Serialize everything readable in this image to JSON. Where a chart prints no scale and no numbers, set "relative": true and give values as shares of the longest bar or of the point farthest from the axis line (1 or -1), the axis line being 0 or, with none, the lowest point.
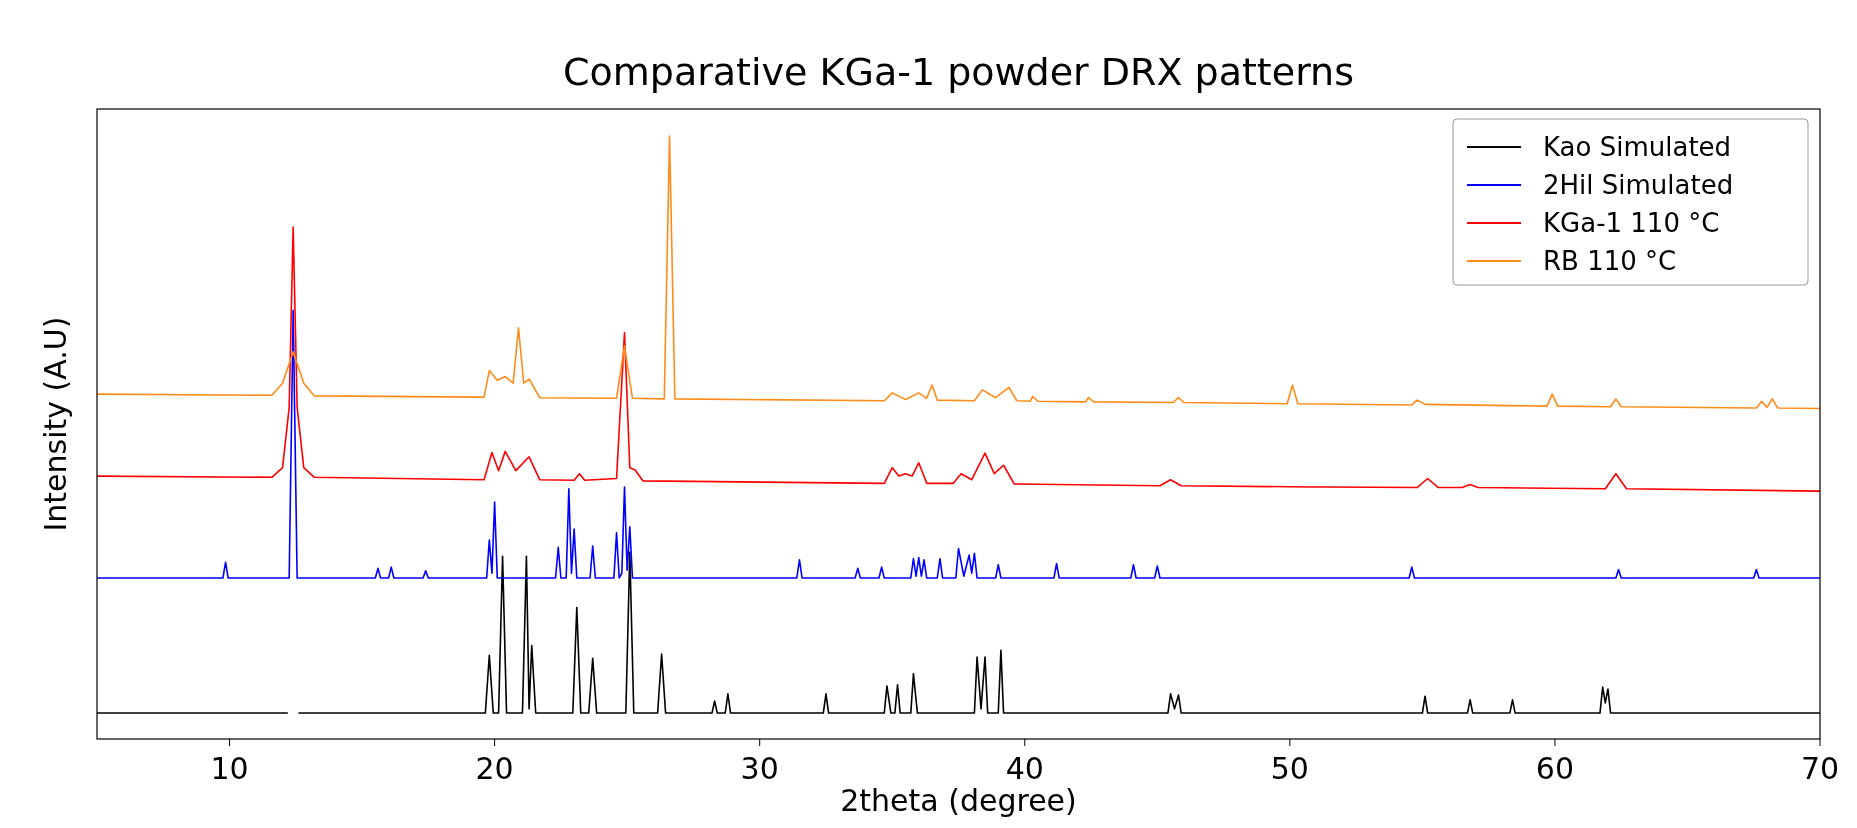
{
  "chart_data": {
    "type": "line",
    "title": "Comparative KGa-1 powder DRX patterns",
    "xlabel": "2theta (degree)",
    "ylabel": "Intensity (A.U)",
    "relative": true,
    "xlim": [
      5,
      70
    ],
    "xticks": [
      10,
      20,
      30,
      40,
      50,
      60,
      70
    ],
    "legend": "top right",
    "series": [
      {
        "name": "Kao Simulated",
        "color": "#000000",
        "x": [
          5,
          12.2,
          12.4,
          12.6,
          19.65,
          19.8,
          19.95,
          20.15,
          20.3,
          20.45,
          21.05,
          21.2,
          21.3,
          21.4,
          21.55,
          22.95,
          23.1,
          23.25,
          23.55,
          23.7,
          23.85,
          24.95,
          25.1,
          25.25,
          26.15,
          26.3,
          26.45,
          28.2,
          28.3,
          28.4,
          28.7,
          28.8,
          28.9,
          32.4,
          32.5,
          32.6,
          34.7,
          34.8,
          34.95,
          35.1,
          35.2,
          35.3,
          35.7,
          35.8,
          35.95,
          38.1,
          38.2,
          38.35,
          38.5,
          38.6,
          39.0,
          39.1,
          39.2,
          45.4,
          45.5,
          45.65,
          45.8,
          45.9,
          55.0,
          55.1,
          55.2,
          56.7,
          56.8,
          56.9,
          58.3,
          58.4,
          58.5,
          61.7,
          61.8,
          61.9,
          62.0,
          62.1,
          70
        ],
        "values": [
          0.043,
          0.043,
          null,
          0.043,
          0.043,
          0.139,
          0.043,
          0.043,
          0.303,
          0.043,
          0.043,
          0.303,
          0.05,
          0.155,
          0.043,
          0.043,
          0.218,
          0.043,
          0.043,
          0.134,
          0.043,
          0.043,
          0.31,
          0.043,
          0.043,
          0.141,
          0.043,
          0.043,
          0.063,
          0.043,
          0.043,
          0.075,
          0.043,
          0.043,
          0.075,
          0.043,
          0.043,
          0.088,
          0.043,
          0.043,
          0.09,
          0.043,
          0.043,
          0.108,
          0.043,
          0.043,
          0.136,
          0.05,
          0.136,
          0.043,
          0.043,
          0.147,
          0.043,
          0.043,
          0.075,
          0.05,
          0.073,
          0.043,
          0.043,
          0.071,
          0.043,
          0.043,
          0.065,
          0.043,
          0.043,
          0.065,
          0.043,
          0.043,
          0.086,
          0.06,
          0.083,
          0.043,
          0.043
        ]
      },
      {
        "name": "2Hil Simulated",
        "color": "#0000ff",
        "x": [
          5,
          9.75,
          9.85,
          9.95,
          12.25,
          12.4,
          12.55,
          15.5,
          15.6,
          15.7,
          16.0,
          16.1,
          16.2,
          17.3,
          17.4,
          17.5,
          19.7,
          19.8,
          19.9,
          20.0,
          20.1,
          22.3,
          22.4,
          22.5,
          22.7,
          22.8,
          22.9,
          23.0,
          23.1,
          23.6,
          23.7,
          23.8,
          24.5,
          24.6,
          24.7,
          24.8,
          24.9,
          25.0,
          25.1,
          25.2,
          31.4,
          31.5,
          31.6,
          33.6,
          33.7,
          33.8,
          34.5,
          34.6,
          34.7,
          35.7,
          35.8,
          35.9,
          36.0,
          36.1,
          36.2,
          36.3,
          36.7,
          36.8,
          36.9,
          37.4,
          37.5,
          37.7,
          37.9,
          38.0,
          38.1,
          38.2,
          38.9,
          39.0,
          39.1,
          41.1,
          41.2,
          41.3,
          44.0,
          44.1,
          44.2,
          44.9,
          45.0,
          45.1,
          54.5,
          54.6,
          54.7,
          62.3,
          62.4,
          62.5,
          67.5,
          67.6,
          67.7,
          70
        ],
        "values": [
          0.267,
          0.267,
          0.293,
          0.267,
          0.267,
          0.711,
          0.267,
          0.267,
          0.283,
          0.267,
          0.267,
          0.285,
          0.267,
          0.267,
          0.279,
          0.267,
          0.267,
          0.33,
          0.275,
          0.393,
          0.267,
          0.267,
          0.318,
          0.267,
          0.267,
          0.415,
          0.275,
          0.348,
          0.267,
          0.267,
          0.32,
          0.267,
          0.267,
          0.342,
          0.267,
          0.275,
          0.418,
          0.28,
          0.352,
          0.267,
          0.267,
          0.297,
          0.267,
          0.267,
          0.283,
          0.267,
          0.267,
          0.285,
          0.267,
          0.267,
          0.299,
          0.27,
          0.301,
          0.27,
          0.297,
          0.267,
          0.267,
          0.299,
          0.267,
          0.267,
          0.316,
          0.27,
          0.305,
          0.275,
          0.308,
          0.267,
          0.267,
          0.289,
          0.267,
          0.267,
          0.291,
          0.267,
          0.267,
          0.289,
          0.267,
          0.267,
          0.287,
          0.267,
          0.267,
          0.285,
          0.267,
          0.267,
          0.281,
          0.267,
          0.267,
          0.281,
          0.267,
          0.267
        ]
      },
      {
        "name": "KGa-1 110 °C",
        "color": "#ff0000",
        "x": [
          5,
          11.6,
          12.0,
          12.25,
          12.4,
          12.55,
          12.8,
          13.2,
          19.6,
          19.9,
          20.15,
          20.4,
          20.8,
          21.3,
          21.7,
          23.0,
          23.2,
          23.4,
          24.6,
          24.9,
          25.1,
          25.3,
          25.6,
          34.7,
          35.0,
          35.25,
          35.5,
          35.75,
          36.0,
          36.3,
          37.3,
          37.6,
          38.0,
          38.5,
          38.85,
          39.2,
          39.6,
          45.1,
          45.5,
          45.9,
          50.8,
          51.1,
          51.4,
          54.8,
          55.2,
          55.6,
          56.5,
          56.8,
          57.1,
          61.9,
          62.3,
          62.7,
          70
        ],
        "values": [
          0.436,
          0.434,
          0.45,
          0.55,
          0.849,
          0.55,
          0.45,
          0.434,
          0.43,
          0.475,
          0.445,
          0.477,
          0.445,
          0.468,
          0.43,
          0.429,
          0.44,
          0.429,
          0.432,
          0.674,
          0.45,
          0.446,
          0.428,
          0.424,
          0.45,
          0.436,
          0.44,
          0.436,
          0.458,
          0.424,
          0.424,
          0.44,
          0.43,
          0.474,
          0.44,
          0.454,
          0.423,
          0.42,
          0.43,
          0.42,
          0.418,
          0.418,
          0.418,
          0.417,
          0.432,
          0.417,
          0.417,
          0.422,
          0.417,
          0.415,
          0.44,
          0.415,
          0.411
        ]
      },
      {
        "name": "RB 110 °C",
        "color": "#ff8c1a",
        "x": [
          5,
          11.6,
          12.0,
          12.4,
          12.8,
          13.2,
          19.6,
          19.8,
          20.1,
          20.4,
          20.7,
          20.9,
          21.1,
          21.3,
          21.7,
          24.6,
          24.9,
          25.2,
          26.4,
          26.6,
          26.8,
          34.7,
          35.0,
          35.5,
          36.0,
          36.3,
          36.5,
          36.7,
          38.1,
          38.4,
          38.9,
          39.4,
          39.7,
          40.2,
          40.3,
          40.5,
          42.3,
          42.4,
          42.6,
          45.6,
          45.8,
          46.0,
          49.9,
          50.1,
          50.3,
          54.6,
          54.8,
          55.1,
          59.7,
          59.9,
          60.1,
          62.1,
          62.3,
          62.5,
          67.6,
          67.8,
          68.0,
          68.2,
          68.4,
          70
        ],
        "values": [
          0.572,
          0.57,
          0.59,
          0.642,
          0.59,
          0.569,
          0.567,
          0.611,
          0.595,
          0.601,
          0.59,
          0.682,
          0.59,
          0.597,
          0.566,
          0.565,
          0.652,
          0.565,
          0.564,
          1.0,
          0.564,
          0.561,
          0.574,
          0.563,
          0.574,
          0.565,
          0.587,
          0.562,
          0.561,
          0.579,
          0.566,
          0.583,
          0.561,
          0.56,
          0.568,
          0.56,
          0.559,
          0.566,
          0.559,
          0.558,
          0.566,
          0.558,
          0.556,
          0.587,
          0.556,
          0.554,
          0.562,
          0.555,
          0.552,
          0.572,
          0.552,
          0.551,
          0.564,
          0.551,
          0.549,
          0.56,
          0.55,
          0.564,
          0.549,
          0.548
        ]
      }
    ]
  }
}
